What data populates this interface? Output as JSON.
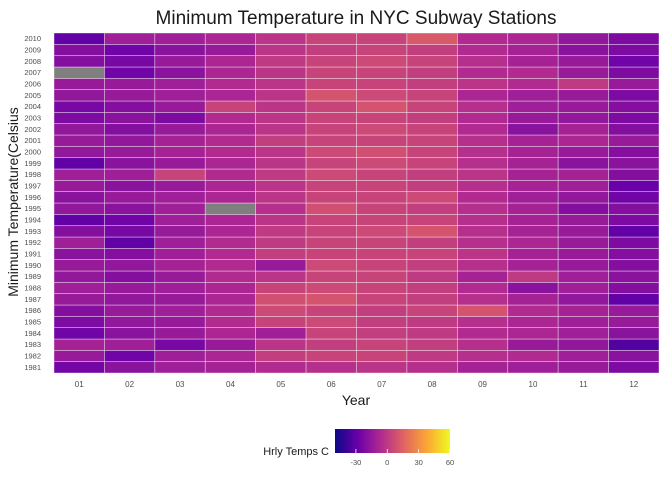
{
  "chart_data": {
    "type": "heatmap",
    "title": "Minimum Temperature in NYC Subway Stations",
    "xlabel": "Year",
    "ylabel": "Minimum Temperature(Celsius",
    "x_categories": [
      "01",
      "02",
      "03",
      "04",
      "05",
      "06",
      "07",
      "08",
      "09",
      "10",
      "11",
      "12"
    ],
    "y_categories": [
      "1981",
      "1982",
      "1983",
      "1984",
      "1985",
      "1986",
      "1987",
      "1988",
      "1989",
      "1990",
      "1991",
      "1992",
      "1993",
      "1994",
      "1995",
      "1996",
      "1997",
      "1998",
      "1999",
      "2000",
      "2001",
      "2002",
      "2003",
      "2004",
      "2005",
      "2006",
      "2007",
      "2008",
      "2009",
      "2010"
    ],
    "values": [
      [
        -25,
        -18,
        -12,
        -10,
        -6,
        -4,
        -2,
        -4,
        -10,
        -12,
        -14,
        -22
      ],
      [
        -14,
        -26,
        -12,
        -8,
        2,
        4,
        4,
        0,
        -4,
        -6,
        -12,
        -18
      ],
      [
        -10,
        -12,
        -24,
        -14,
        -2,
        2,
        4,
        2,
        -4,
        -14,
        -16,
        -34
      ],
      [
        -26,
        -18,
        -14,
        -8,
        -12,
        4,
        2,
        0,
        -6,
        -8,
        -12,
        -18
      ],
      [
        -22,
        -16,
        -14,
        -6,
        4,
        6,
        2,
        0,
        -4,
        -8,
        -12,
        -14
      ],
      [
        -20,
        -14,
        -12,
        -6,
        6,
        4,
        2,
        4,
        10,
        -6,
        -10,
        -14
      ],
      [
        -14,
        -16,
        -14,
        -8,
        8,
        10,
        4,
        2,
        -4,
        -10,
        -16,
        -30
      ],
      [
        -12,
        -14,
        -12,
        -8,
        4,
        6,
        4,
        2,
        -6,
        -18,
        -12,
        -20
      ],
      [
        -16,
        -20,
        -14,
        -6,
        -2,
        4,
        4,
        0,
        -10,
        0,
        -12,
        -18
      ],
      [
        -14,
        -16,
        -10,
        -6,
        -14,
        6,
        4,
        2,
        -4,
        -10,
        -14,
        -20
      ],
      [
        -18,
        -20,
        -12,
        -6,
        2,
        4,
        4,
        4,
        -2,
        -10,
        -14,
        -20
      ],
      [
        -12,
        -30,
        -12,
        -6,
        0,
        4,
        4,
        2,
        -4,
        -8,
        -14,
        -22
      ],
      [
        -20,
        -24,
        -14,
        -8,
        0,
        4,
        6,
        10,
        -4,
        -10,
        -14,
        -30
      ],
      [
        -30,
        -26,
        -12,
        -8,
        -2,
        4,
        4,
        4,
        -4,
        -10,
        -14,
        -22
      ],
      [
        -16,
        -18,
        -12,
        null,
        -4,
        8,
        4,
        2,
        -4,
        -10,
        -20,
        -20
      ],
      [
        -18,
        -14,
        -12,
        -8,
        -2,
        4,
        4,
        6,
        -6,
        -12,
        -16,
        -26
      ],
      [
        -14,
        -18,
        -14,
        -8,
        -2,
        4,
        4,
        2,
        -4,
        -10,
        -12,
        -28
      ],
      [
        -12,
        -12,
        4,
        -6,
        0,
        6,
        4,
        2,
        -2,
        -10,
        -10,
        -20
      ],
      [
        -30,
        -18,
        -14,
        -8,
        -2,
        4,
        6,
        4,
        -4,
        -10,
        -18,
        -18
      ],
      [
        -16,
        -14,
        -10,
        -6,
        -2,
        6,
        8,
        4,
        -4,
        -10,
        -14,
        -20
      ],
      [
        -14,
        -16,
        -10,
        -6,
        2,
        4,
        4,
        4,
        -4,
        -10,
        -8,
        -14
      ],
      [
        -16,
        -20,
        -14,
        -8,
        -2,
        4,
        6,
        4,
        -6,
        -18,
        -10,
        -20
      ],
      [
        -22,
        -18,
        -22,
        -6,
        -2,
        4,
        4,
        2,
        -6,
        -14,
        -16,
        -22
      ],
      [
        -24,
        -20,
        -14,
        4,
        -2,
        4,
        10,
        4,
        -4,
        -12,
        -14,
        -20
      ],
      [
        -16,
        -14,
        -12,
        -8,
        -2,
        10,
        6,
        4,
        -8,
        -12,
        -14,
        -22
      ],
      [
        -14,
        -14,
        -12,
        -6,
        -2,
        4,
        4,
        2,
        -2,
        -6,
        0,
        -14
      ],
      [
        null,
        -26,
        -18,
        -8,
        -2,
        4,
        4,
        2,
        -6,
        -6,
        -14,
        -22
      ],
      [
        -20,
        -24,
        -14,
        -8,
        0,
        4,
        6,
        4,
        -4,
        -10,
        -14,
        -26
      ],
      [
        -20,
        -26,
        -18,
        -14,
        -2,
        2,
        4,
        2,
        -6,
        -10,
        -18,
        -22
      ],
      [
        -30,
        -12,
        -12,
        -8,
        -2,
        4,
        4,
        12,
        -6,
        -8,
        -16,
        -22
      ]
    ],
    "legend": {
      "title": "Hrly Temps C",
      "min": -50,
      "max": 60,
      "ticks": [
        -30,
        0,
        30,
        60
      ],
      "colors": [
        "#0d0887",
        "#6a00a8",
        "#b12a90",
        "#e16462",
        "#fca636",
        "#f0f921"
      ]
    },
    "missing_color": "#7f7f7f",
    "grid": false
  }
}
